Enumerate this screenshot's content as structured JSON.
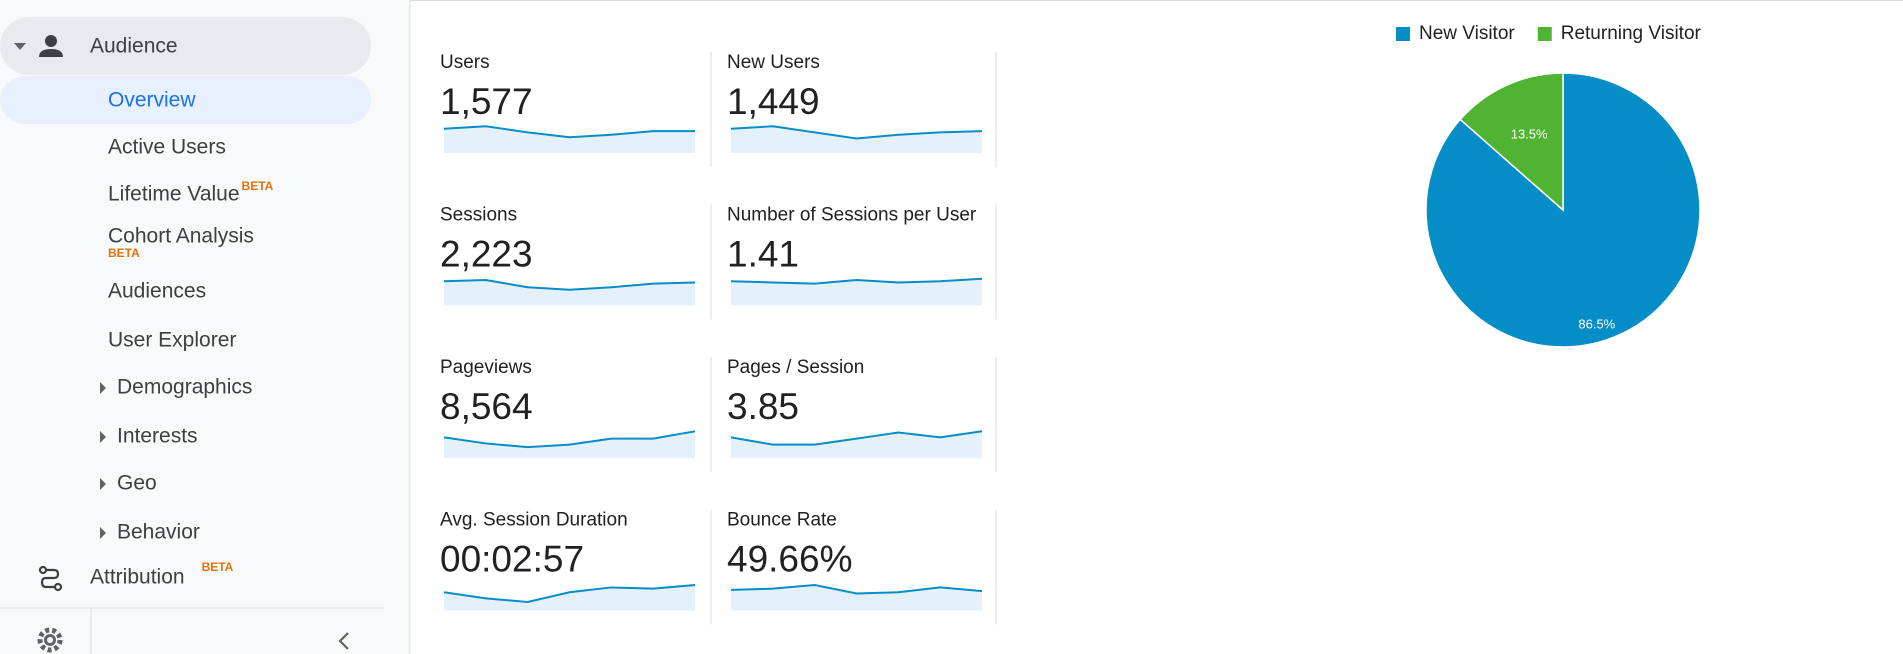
{
  "sidebar": {
    "section": "Audience",
    "items": [
      {
        "label": "Overview"
      },
      {
        "label": "Active Users"
      },
      {
        "label": "Lifetime Value",
        "badge": "BETA"
      },
      {
        "label": "Cohort Analysis",
        "badge": "BETA"
      },
      {
        "label": "Audiences"
      },
      {
        "label": "User Explorer"
      }
    ],
    "groups": [
      "Demographics",
      "Interests",
      "Geo",
      "Behavior"
    ],
    "attribution": {
      "label": "Attribution",
      "badge": "BETA"
    }
  },
  "metrics": [
    {
      "label": "Users",
      "value": "1,577",
      "sparkline": [
        20,
        22,
        17,
        13,
        15,
        18,
        18
      ]
    },
    {
      "label": "New Users",
      "value": "1,449",
      "sparkline": [
        20,
        22,
        17,
        12,
        15,
        17,
        18
      ]
    },
    {
      "label": "Sessions",
      "value": "2,223",
      "sparkline": [
        20,
        21,
        15,
        13,
        15,
        18,
        19
      ]
    },
    {
      "label": "Number of Sessions per User",
      "value": "1.41",
      "sparkline": [
        20,
        19,
        18,
        21,
        19,
        20,
        22
      ]
    },
    {
      "label": "Pageviews",
      "value": "8,564",
      "sparkline": [
        17,
        12,
        9,
        11,
        16,
        16,
        22
      ]
    },
    {
      "label": "Pages / Session",
      "value": "3.85",
      "sparkline": [
        17,
        11,
        11,
        16,
        21,
        17,
        22
      ]
    },
    {
      "label": "Avg. Session Duration",
      "value": "00:02:57",
      "sparkline": [
        15,
        10,
        7,
        15,
        19,
        18,
        21
      ]
    },
    {
      "label": "Bounce Rate",
      "value": "49.66%",
      "sparkline": [
        17,
        18,
        21,
        14,
        15,
        19,
        16
      ]
    }
  ],
  "chart_data": {
    "type": "pie",
    "categories": [
      "New Visitor",
      "Returning Visitor"
    ],
    "values": [
      86.5,
      13.5
    ],
    "value_labels": [
      "86.5%",
      "13.5%"
    ],
    "colors": [
      "#058dc7",
      "#50b432"
    ],
    "legend": "top"
  }
}
